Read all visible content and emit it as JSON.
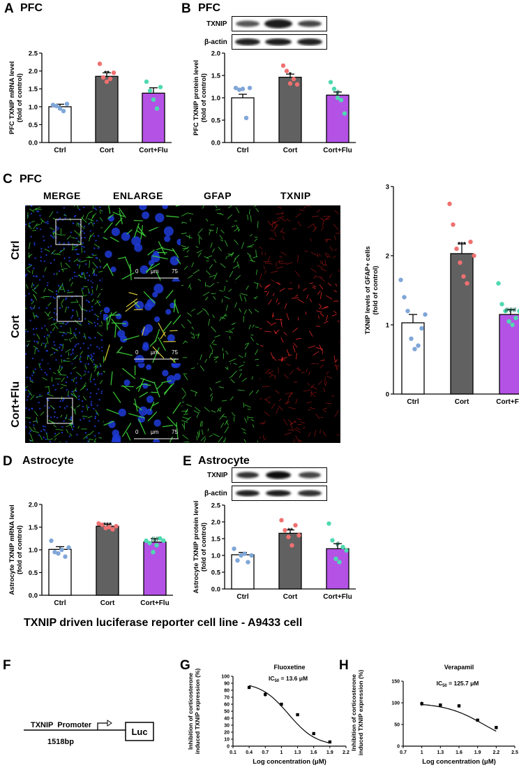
{
  "panels": {
    "A": {
      "letter": "A",
      "title": "PFC"
    },
    "B": {
      "letter": "B",
      "title": "PFC",
      "blot_labels": [
        "TXNIP",
        "β-actin"
      ]
    },
    "C": {
      "letter": "C",
      "title": "PFC",
      "columns": [
        "MERGE",
        "ENLARGE",
        "GFAP",
        "TXNIP"
      ],
      "rows": [
        "Ctrl",
        "Cort",
        "Cort+Flu"
      ],
      "scalebar": {
        "start": "0",
        "unit": "μm",
        "end": "75"
      }
    },
    "D": {
      "letter": "D",
      "title": "Astrocyte"
    },
    "E": {
      "letter": "E",
      "title": "Astrocyte",
      "blot_labels": [
        "TXNIP",
        "β-actin"
      ]
    },
    "F": {
      "letter": "F",
      "promoter_label": "TXNIP  Promoter",
      "bp_label": "1518bp",
      "luc_label": "Luc"
    },
    "G": {
      "letter": "G"
    },
    "H": {
      "letter": "H"
    }
  },
  "section_heading": "TXNIP driven luciferase reporter cell line - A9433 cell",
  "colors": {
    "ctrl_bar": "#ffffff",
    "cort_bar": "#616161",
    "flu_bar": "#b452e6",
    "ctrl_dot": "#7fa6d8",
    "cort_dot": "#f07070",
    "flu_dot": "#4fd9b0"
  },
  "chart_data": [
    {
      "id": "A",
      "type": "bar",
      "ylabel": "PFC TXNIP mRNA level\n(fold of control)",
      "categories": [
        "Ctrl",
        "Cort",
        "Cort+Flu"
      ],
      "values": [
        1.0,
        1.85,
        1.38
      ],
      "errors": [
        0.07,
        0.1,
        0.15
      ],
      "ylim": [
        0,
        2.5
      ],
      "yticks": [
        "0.0",
        "0.5",
        "1.0",
        "1.5",
        "2.0",
        "2.5"
      ],
      "annotations": [
        "",
        "**",
        ""
      ],
      "points": [
        [
          1.05,
          1.02,
          0.95,
          0.88,
          1.08
        ],
        [
          2.2,
          1.82,
          1.7,
          1.78,
          1.95
        ],
        [
          1.7,
          1.45,
          1.2,
          0.95,
          1.55
        ]
      ]
    },
    {
      "id": "B",
      "type": "bar",
      "ylabel": "PFC TXNIP protein level\n(fold of control)",
      "categories": [
        "Ctrl",
        "Cort",
        "Cort+Flu"
      ],
      "values": [
        1.0,
        1.46,
        1.06
      ],
      "errors": [
        0.08,
        0.07,
        0.07
      ],
      "ylim": [
        0,
        2.0
      ],
      "yticks": [
        "0.0",
        "0.5",
        "1.0",
        "1.5",
        "2.0"
      ],
      "annotations": [
        "",
        "*",
        "#"
      ],
      "points": [
        [
          1.22,
          1.18,
          1.2,
          0.55,
          1.22
        ],
        [
          1.72,
          1.6,
          1.32,
          1.42,
          1.3
        ],
        [
          1.35,
          1.2,
          1.0,
          0.95,
          0.65
        ]
      ]
    },
    {
      "id": "C",
      "type": "bar",
      "ylabel": "TXNIP levels of GFAP+ cells\n(fold of control)",
      "categories": [
        "Ctrl",
        "Cort",
        "Cort+Flu"
      ],
      "values": [
        1.03,
        2.03,
        1.15
      ],
      "errors": [
        0.12,
        0.14,
        0.07
      ],
      "ylim": [
        0,
        3
      ],
      "yticks": [
        "0",
        "1",
        "2",
        "3"
      ],
      "annotations": [
        "",
        "***",
        "###"
      ],
      "points": [
        [
          1.65,
          1.4,
          1.2,
          0.8,
          0.65,
          0.7,
          0.95,
          1.15
        ],
        [
          2.75,
          2.45,
          2.1,
          1.9,
          1.7,
          1.6,
          2.2,
          2.0
        ],
        [
          1.6,
          1.3,
          1.2,
          1.05,
          1.0,
          1.1,
          1.2,
          1.05
        ]
      ]
    },
    {
      "id": "D",
      "type": "bar",
      "ylabel": "Astrocyte TXNIP mRNA level\n(fold of control)",
      "categories": [
        "Ctrl",
        "Cort",
        "Cort+Flu"
      ],
      "values": [
        1.01,
        1.52,
        1.17
      ],
      "errors": [
        0.06,
        0.04,
        0.08
      ],
      "ylim": [
        0,
        2.0
      ],
      "yticks": [
        "0.0",
        "0.5",
        "1.0",
        "1.5",
        "2.0"
      ],
      "annotations": [
        "",
        "***",
        "##"
      ],
      "points": [
        [
          1.2,
          0.95,
          0.92,
          1.0,
          0.85,
          1.05
        ],
        [
          1.58,
          1.55,
          1.48,
          1.5,
          1.45,
          1.52
        ],
        [
          1.2,
          1.15,
          0.95,
          1.1,
          1.25,
          1.2
        ]
      ]
    },
    {
      "id": "E",
      "type": "bar",
      "ylabel": "Astrocyte TXNIP protein level\n(fold of control)",
      "categories": [
        "Ctrl",
        "Cort",
        "Cort+Flu"
      ],
      "values": [
        1.02,
        1.66,
        1.2
      ],
      "errors": [
        0.07,
        0.1,
        0.15
      ],
      "ylim": [
        0,
        2.5
      ],
      "yticks": [
        "0.0",
        "0.5",
        "1.0",
        "1.5",
        "2.0",
        "2.5"
      ],
      "annotations": [
        "",
        "**",
        "#"
      ],
      "points": [
        [
          1.2,
          0.85,
          1.0,
          1.05,
          0.8,
          1.0
        ],
        [
          2.05,
          1.75,
          1.55,
          1.3,
          1.9,
          1.6
        ],
        [
          1.95,
          1.45,
          0.9,
          0.8,
          1.25,
          1.15
        ]
      ]
    },
    {
      "id": "G",
      "type": "scatter",
      "title": "Fluoxetine",
      "subtitle_main": "IC",
      "subtitle_sub": "50",
      "subtitle_rest": " = 13.6 μM",
      "ylabel": "Inhibition of corticosterone\ninduced TXNIP expression (%)",
      "xlabel": "Log concentration (μM)",
      "xlim": [
        0.1,
        2.2
      ],
      "ylim": [
        0,
        100
      ],
      "xticks": [
        "0.1",
        "0.4",
        "0.7",
        "1",
        "1.3",
        "1.6",
        "1.9",
        "2.2"
      ],
      "yticks": [
        "0",
        "10",
        "20",
        "30",
        "40",
        "50",
        "60",
        "70",
        "80",
        "90",
        "100"
      ],
      "x": [
        0.4,
        0.7,
        1.0,
        1.3,
        1.6,
        1.9
      ],
      "y": [
        84,
        74,
        60,
        45,
        18,
        6
      ],
      "errors": [
        1,
        3,
        1,
        1,
        1,
        1
      ]
    },
    {
      "id": "H",
      "type": "scatter",
      "title": "Verapamil",
      "subtitle_main": "IC",
      "subtitle_sub": "50",
      "subtitle_rest": " = 125.7 μM",
      "ylabel": "Inhibition of corticosterone\ninduced TXNIP expression (%)",
      "xlabel": "Log concentration (μM)",
      "xlim": [
        0.7,
        2.5
      ],
      "ylim": [
        0,
        150
      ],
      "xticks": [
        "0.7",
        "1",
        "1.3",
        "1.6",
        "1.9",
        "2.2",
        "2.5"
      ],
      "yticks": [
        "0",
        "50",
        "100",
        "150"
      ],
      "x": [
        1.0,
        1.3,
        1.6,
        1.9,
        2.2
      ],
      "y": [
        98,
        95,
        93,
        60,
        43
      ],
      "errors": [
        5,
        3,
        4,
        1,
        4
      ]
    }
  ]
}
